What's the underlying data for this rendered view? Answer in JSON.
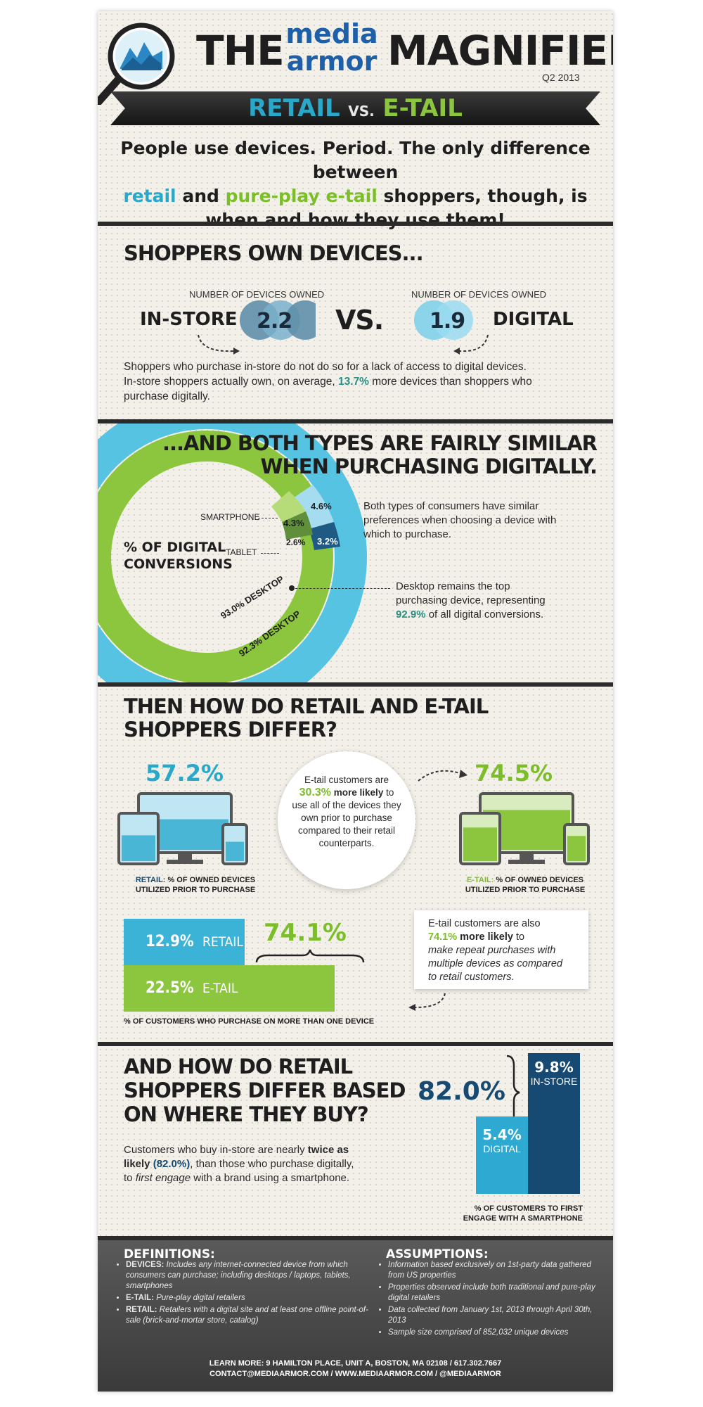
{
  "header": {
    "title_left": "THE",
    "brand_line1": "media",
    "brand_line2": "armor",
    "title_right": "MAGNIFIER",
    "date": "Q2 2013",
    "banner_left": "RETAIL",
    "banner_vs": "VS.",
    "banner_right": "E-TAIL",
    "intro_1": "People use devices. Period. The only difference between",
    "intro_retail": "retail",
    "intro_and": " and ",
    "intro_etail": "pure-play e-tail",
    "intro_2": " shoppers, though, is",
    "intro_3": "when and how they use them!"
  },
  "devices": {
    "heading": "SHOPPERS OWN DEVICES...",
    "num_label": "NUMBER OF DEVICES OWNED",
    "instore_label": "IN-STORE",
    "instore_value": "2.2",
    "vs": "VS.",
    "digital_label": "DIGITAL",
    "digital_value": "1.9",
    "text_1": "Shoppers who purchase in-store do not do so for a lack of access to digital devices.",
    "text_2a": "In-store shoppers actually own, on average, ",
    "text_2b": "13.7%",
    "text_2c": " more devices than shoppers who",
    "text_3": "purchase digitally."
  },
  "similar": {
    "heading_1": "...AND BOTH TYPES ARE FAIRLY SIMILAR",
    "heading_2": "WHEN PURCHASING DIGITALLY.",
    "conv_label_1": "% OF DIGITAL",
    "conv_label_2": "CONVERSIONS",
    "smartphone": "SMARTPHONE",
    "tablet": "TABLET",
    "outer_smartphone": "4.6%",
    "inner_smartphone": "4.3%",
    "inner_tablet": "2.6%",
    "outer_tablet": "3.2%",
    "inner_desktop": "93.0% DESKTOP",
    "outer_desktop": "92.3% DESKTOP",
    "note_1": "Both types of consumers have similar",
    "note_2": "preferences when choosing a device with",
    "note_3": "which to purchase.",
    "desk_1": "Desktop remains the top",
    "desk_2": "purchasing device, representing",
    "desk_3a": "92.9%",
    "desk_3b": " of all digital conversions.",
    "colors": {
      "outer": "#56c3e3",
      "inner": "#8cc63f",
      "light_blue": "#a6dcf0",
      "dark_navy": "#1e5a84"
    }
  },
  "differ": {
    "heading_1": "THEN HOW DO RETAIL AND E-TAIL",
    "heading_2": "SHOPPERS DIFFER?",
    "retail_pct": "57.2%",
    "retail_fill": 0.572,
    "retail_caption_a": "RETAIL:",
    "retail_caption_b": " % OF OWNED DEVICES",
    "retail_caption_c": "UTILIZED PRIOR TO PURCHASE",
    "etail_pct": "74.5%",
    "etail_fill": 0.745,
    "etail_caption_a": "E-TAIL:",
    "etail_caption_b": " % OF OWNED DEVICES",
    "etail_caption_c": "UTILIZED PRIOR TO PURCHASE",
    "circle_1": "E-tail customers are",
    "circle_2a": "30.3%",
    "circle_2b": " more likely",
    "circle_2c": " to",
    "circle_3": "use all of the devices they",
    "circle_4": "own prior to purchase",
    "circle_5": "compared to their retail",
    "circle_6": "counterparts.",
    "bar_retail_value": "12.9%",
    "bar_retail_value_num": 12.9,
    "bar_retail_label": "RETAIL",
    "bar_etail_value": "22.5%",
    "bar_etail_value_num": 22.5,
    "bar_etail_label": "E-TAIL",
    "bar_diff": "74.1%",
    "bar_caption": "% OF CUSTOMERS WHO PURCHASE ON MORE THAN ONE DEVICE",
    "box_1": "E-tail customers are also",
    "box_2a": "74.1%",
    "box_2b": " more likely",
    "box_2c": " to",
    "box_3": "make repeat purchases with",
    "box_4": "multiple devices as compared",
    "box_5": "to retail customers."
  },
  "where": {
    "heading_1": "AND HOW DO RETAIL",
    "heading_2": "SHOPPERS DIFFER BASED",
    "heading_3": "ON WHERE THEY BUY?",
    "text_1a": "Customers who buy in-store are nearly ",
    "text_1b": "twice as",
    "text_2a": "likely",
    "text_2b": " (82.0%)",
    "text_2c": ", than those who purchase digitally,",
    "text_3a": "to ",
    "text_3b": "first engage",
    "text_3c": " with a brand using a smartphone.",
    "big_pct": "82.0%",
    "instore_value": "9.8%",
    "instore_value_num": 9.8,
    "instore_label": "IN-STORE",
    "digital_value": "5.4%",
    "digital_value_num": 5.4,
    "digital_label": "DIGITAL",
    "caption_1": "% OF CUSTOMERS TO FIRST",
    "caption_2": "ENGAGE WITH A SMARTPHONE"
  },
  "footer": {
    "def_title": "DEFINITIONS:",
    "def_devices_a": "DEVICES:",
    "def_devices_b": " Includes any internet-connected device from which consumers can purchase; including desktops / laptops, tablets, smartphones",
    "def_etail_a": "E-TAIL:",
    "def_etail_b": " Pure-play digital retailers",
    "def_retail_a": "RETAIL:",
    "def_retail_b": " Retailers with a digital site and at least one offline point-of-sale (brick-and-mortar store, catalog)",
    "assume_title": "ASSUMPTIONS:",
    "assume_1": "Information based exclusively on 1st-party data gathered from US properties",
    "assume_2": "Properties observed include both traditional and pure-play digital retailers",
    "assume_3": "Data collected from January 1st, 2013 through April 30th, 2013",
    "assume_4": "Sample size comprised of 852,032 unique devices",
    "learn_1": "LEARN MORE: 9 HAMILTON PLACE, UNIT A, BOSTON, MA 02108 / 617.302.7667",
    "learn_2": "CONTACT@MEDIAARMOR.COM / WWW.MEDIAARMOR.COM / @MEDIAARMOR"
  }
}
